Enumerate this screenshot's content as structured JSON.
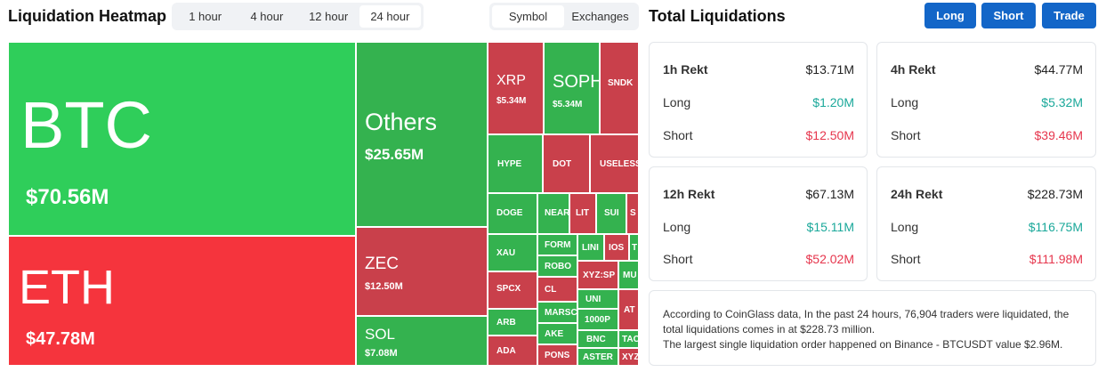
{
  "header": {
    "title": "Liquidation Heatmap",
    "time_tabs": [
      "1 hour",
      "4 hour",
      "12 hour",
      "24 hour"
    ],
    "view_tabs": [
      "Symbol",
      "Exchanges"
    ],
    "right_title": "Total Liquidations",
    "buttons": [
      "Long",
      "Short",
      "Trade"
    ]
  },
  "heatmap": {
    "btc": {
      "symbol": "BTC",
      "amount": "$70.56M"
    },
    "eth": {
      "symbol": "ETH",
      "amount": "$47.78M"
    },
    "others": {
      "symbol": "Others",
      "amount": "$25.65M"
    },
    "zec": {
      "symbol": "ZEC",
      "amount": "$12.50M"
    },
    "sol": {
      "symbol": "SOL",
      "amount": "$7.08M"
    },
    "xrp": {
      "symbol": "XRP",
      "amount": "$5.34M"
    },
    "soph": {
      "symbol": "SOPH",
      "amount": "$5.34M"
    },
    "sndk": "SNDK",
    "hype": "HYPE",
    "dot": "DOT",
    "useless": "USELESS",
    "doge": "DOGE",
    "near": "NEAR",
    "lit": "LIT",
    "sui": "SUI",
    "s1": "S",
    "xau": "XAU",
    "form": "FORM",
    "lin": "LINI",
    "ios": "IOS",
    "t1": "T",
    "robo": "ROBO",
    "xyz": "XYZ:SP",
    "mu": "MU",
    "spcx": "SPCX",
    "cl": "CL",
    "uni": "UNI",
    "arb": "ARB",
    "marsc": "MARSC",
    "k1000": "1000P",
    "at": "AT",
    "ake": "AKE",
    "bnc": "BNC",
    "tac": "TAC",
    "ada": "ADA",
    "pons": "PONS",
    "aster": "ASTER",
    "xyz2": "XYZ"
  },
  "stats": [
    {
      "label": "1h Rekt",
      "total": "$13.71M",
      "long_label": "Long",
      "long": "$1.20M",
      "short_label": "Short",
      "short": "$12.50M"
    },
    {
      "label": "4h Rekt",
      "total": "$44.77M",
      "long_label": "Long",
      "long": "$5.32M",
      "short_label": "Short",
      "short": "$39.46M"
    },
    {
      "label": "12h Rekt",
      "total": "$67.13M",
      "long_label": "Long",
      "long": "$15.11M",
      "short_label": "Short",
      "short": "$52.02M"
    },
    {
      "label": "24h Rekt",
      "total": "$228.73M",
      "long_label": "Long",
      "long": "$116.75M",
      "short_label": "Short",
      "short": "$111.98M"
    }
  ],
  "note": {
    "line1": "According to CoinGlass data, In the past 24 hours, 76,904 traders were liquidated, the total liquidations comes in at $228.73 million.",
    "line2": "The largest single liquidation order happened on Binance - BTCUSDT value $2.96M."
  }
}
